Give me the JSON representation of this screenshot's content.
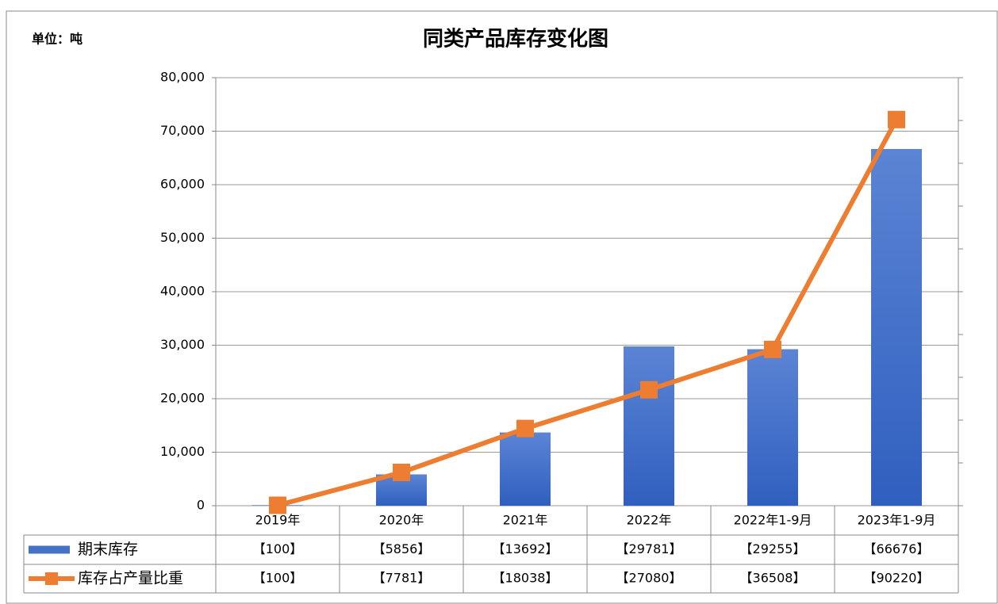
{
  "chart_data": {
    "type": "bar",
    "title": "同类产品库存变化图",
    "unit_label": "单位：吨",
    "categories": [
      "2019年",
      "2020年",
      "2021年",
      "2022年",
      "2022年1-9月",
      "2023年1-9月"
    ],
    "ylim": [
      0,
      80000
    ],
    "yticks": [
      {
        "value": 0,
        "label": "0"
      },
      {
        "value": 10000,
        "label": "10,000"
      },
      {
        "value": 20000,
        "label": "20,000"
      },
      {
        "value": 30000,
        "label": "30,000"
      },
      {
        "value": 40000,
        "label": "40,000"
      },
      {
        "value": 50000,
        "label": "50,000"
      },
      {
        "value": 60000,
        "label": "60,000"
      },
      {
        "value": 70000,
        "label": "70,000"
      },
      {
        "value": 80000,
        "label": "80,000"
      }
    ],
    "y2lim": [
      0,
      100000
    ],
    "y2ticks": [
      0,
      10000,
      20000,
      30000,
      40000,
      50000,
      60000,
      70000,
      80000,
      90000,
      100000
    ],
    "grid": true,
    "series": [
      {
        "name": "期末库存",
        "type": "bar",
        "color": "#4472c4",
        "values": [
          100,
          5856,
          13692,
          29781,
          29255,
          66676
        ],
        "value_labels": [
          "【100】",
          "【5856】",
          "【13692】",
          "【29781】",
          "【29255】",
          "【66676】"
        ]
      },
      {
        "name": "库存占产量比重",
        "type": "line",
        "color": "#ed7d31",
        "axis": "y2",
        "values": [
          100,
          7781,
          18038,
          27080,
          36508,
          90220
        ],
        "value_labels": [
          "【100】",
          "【7781】",
          "【18038】",
          "【27080】",
          "【36508】",
          "【90220】"
        ]
      }
    ]
  }
}
